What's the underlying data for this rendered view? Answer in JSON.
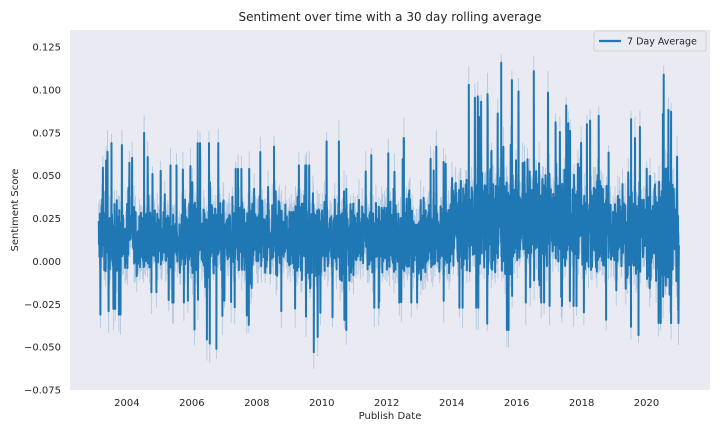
{
  "chart_data": {
    "type": "line",
    "title": "Sentiment over time with a 30 day rolling average",
    "xlabel": "Publish Date",
    "ylabel": "Sentiment Score",
    "xlim": [
      "2002-04-01",
      "2021-12-15"
    ],
    "ylim": [
      -0.075,
      0.135
    ],
    "x_ticks": [
      "2004",
      "2006",
      "2008",
      "2010",
      "2012",
      "2014",
      "2016",
      "2018",
      "2020"
    ],
    "y_ticks": [
      "−0.075",
      "−0.050",
      "−0.025",
      "0.000",
      "0.025",
      "0.050",
      "0.075",
      "0.100",
      "0.125"
    ],
    "grid": false,
    "legend_position": "top-right",
    "colors": {
      "line": "#1f77b4",
      "band": "#a9c4de",
      "plot_bg": "#eaeaf2"
    },
    "series": [
      {
        "name": "7 Day Average",
        "x_start": "2003-02-19",
        "x_end": "2020-12-31",
        "summary": [
          {
            "year": 2003,
            "min": -0.031,
            "max": 0.069
          },
          {
            "year": 2004,
            "min": -0.018,
            "max": 0.075
          },
          {
            "year": 2005,
            "min": -0.024,
            "max": 0.056
          },
          {
            "year": 2006,
            "min": -0.051,
            "max": 0.069
          },
          {
            "year": 2007,
            "min": -0.037,
            "max": 0.054
          },
          {
            "year": 2008,
            "min": -0.029,
            "max": 0.067
          },
          {
            "year": 2009,
            "min": -0.053,
            "max": 0.056
          },
          {
            "year": 2010,
            "min": -0.04,
            "max": 0.07
          },
          {
            "year": 2011,
            "min": -0.027,
            "max": 0.062
          },
          {
            "year": 2012,
            "min": -0.024,
            "max": 0.072
          },
          {
            "year": 2013,
            "min": -0.023,
            "max": 0.067
          },
          {
            "year": 2014,
            "min": -0.027,
            "max": 0.103
          },
          {
            "year": 2015,
            "min": -0.04,
            "max": 0.116
          },
          {
            "year": 2016,
            "min": -0.024,
            "max": 0.111
          },
          {
            "year": 2017,
            "min": -0.026,
            "max": 0.091
          },
          {
            "year": 2018,
            "min": -0.034,
            "max": 0.085
          },
          {
            "year": 2019,
            "min": -0.043,
            "max": 0.083
          },
          {
            "year": 2020,
            "min": -0.036,
            "max": 0.109
          }
        ],
        "mean_by_period": [
          {
            "from": "2003-02-19",
            "to": "2013-12-31",
            "mean": 0.014
          },
          {
            "from": "2014-01-01",
            "to": "2017-12-31",
            "mean": 0.025
          },
          {
            "from": "2018-01-01",
            "to": "2020-12-31",
            "mean": 0.018
          }
        ]
      }
    ]
  }
}
